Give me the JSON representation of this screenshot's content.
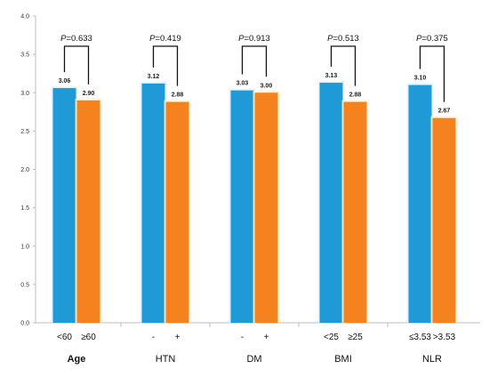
{
  "chart_data": {
    "type": "bar",
    "title": "",
    "xlabel": "",
    "ylabel": "",
    "ylim": [
      0,
      4.0
    ],
    "yticks": [
      "0.0",
      "0.5",
      "1.0",
      "1.5",
      "2.0",
      "2.5",
      "3.0",
      "3.5",
      "4.0"
    ],
    "grid": false,
    "legend": "none",
    "colors": {
      "first": "#1f9ad6",
      "second": "#f5821f"
    },
    "groups": [
      {
        "name": "Age",
        "bold": true,
        "categories": [
          "<60",
          "≥60"
        ],
        "values": [
          3.06,
          2.9
        ],
        "value_labels": [
          "3.06",
          "2.90"
        ],
        "p_label": "P=0.633"
      },
      {
        "name": "HTN",
        "bold": false,
        "categories": [
          "-",
          "+"
        ],
        "values": [
          3.12,
          2.88
        ],
        "value_labels": [
          "3.12",
          "2.88"
        ],
        "p_label": "P=0.419"
      },
      {
        "name": "DM",
        "bold": false,
        "categories": [
          "-",
          "+"
        ],
        "values": [
          3.03,
          3.0
        ],
        "value_labels": [
          "3.03",
          "3.00"
        ],
        "p_label": "P=0.913"
      },
      {
        "name": "BMI",
        "bold": false,
        "categories": [
          "<25",
          "≥25"
        ],
        "values": [
          3.13,
          2.88
        ],
        "value_labels": [
          "3.13",
          "2.88"
        ],
        "p_label": "P=0.513"
      },
      {
        "name": "NLR",
        "bold": false,
        "categories": [
          "≤3.53",
          ">3.53"
        ],
        "values": [
          3.1,
          2.67
        ],
        "value_labels": [
          "3.10",
          "2.67"
        ],
        "p_label": "P=0.375"
      }
    ]
  }
}
